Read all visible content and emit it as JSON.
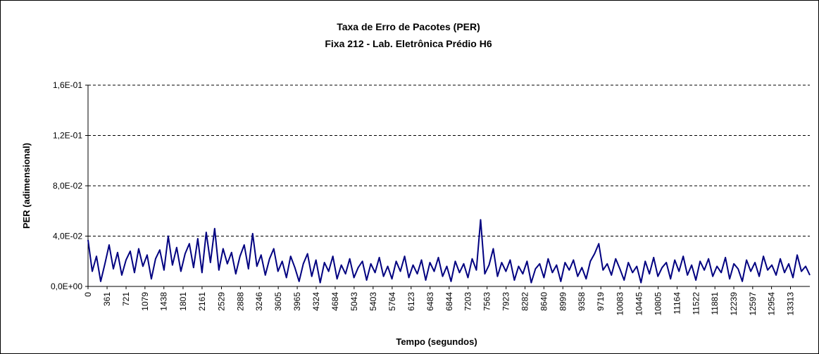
{
  "chart_data": {
    "type": "line",
    "title": "Taxa de Erro de Pacotes (PER)",
    "subtitle": "Fixa 212 - Lab. Eletrônica Prédio H6",
    "x_label": "Tempo (segundos)",
    "y_label": "PER (adimensional)",
    "x": [
      0,
      80,
      160,
      240,
      320,
      400,
      480,
      560,
      640,
      720,
      800,
      880,
      960,
      1040,
      1120,
      1200,
      1280,
      1360,
      1440,
      1520,
      1600,
      1680,
      1760,
      1840,
      1920,
      2000,
      2080,
      2160,
      2240,
      2320,
      2400,
      2480,
      2560,
      2640,
      2720,
      2800,
      2880,
      2960,
      3040,
      3120,
      3200,
      3280,
      3360,
      3440,
      3520,
      3600,
      3680,
      3760,
      3840,
      3920,
      4000,
      4080,
      4160,
      4240,
      4320,
      4400,
      4480,
      4560,
      4640,
      4720,
      4800,
      4880,
      4960,
      5040,
      5120,
      5200,
      5280,
      5360,
      5440,
      5520,
      5600,
      5680,
      5760,
      5840,
      5920,
      6000,
      6080,
      6160,
      6240,
      6320,
      6400,
      6480,
      6560,
      6640,
      6720,
      6800,
      6880,
      6960,
      7040,
      7120,
      7200,
      7280,
      7360,
      7440,
      7520,
      7600,
      7680,
      7760,
      7840,
      7920,
      8000,
      8080,
      8160,
      8240,
      8320,
      8400,
      8480,
      8560,
      8640,
      8720,
      8800,
      8880,
      8960,
      9040,
      9120,
      9200,
      9280,
      9360,
      9440,
      9520,
      9600,
      9680,
      9760,
      9840,
      9920,
      10000,
      10080,
      10160,
      10240,
      10320,
      10400,
      10480,
      10560,
      10640,
      10720,
      10800,
      10880,
      10960,
      11040,
      11120,
      11200,
      11280,
      11360,
      11440,
      11520,
      11600,
      11680,
      11760,
      11840,
      11920,
      12000,
      12080,
      12160,
      12240,
      12320,
      12400,
      12480,
      12560,
      12640,
      12720,
      12800,
      12880,
      12960,
      13040,
      13120,
      13200,
      13280,
      13360,
      13440,
      13520,
      13600,
      13680
    ],
    "series": [
      {
        "name": "PER",
        "color": "#000080",
        "values": [
          0.037,
          0.012,
          0.024,
          0.004,
          0.018,
          0.033,
          0.014,
          0.027,
          0.009,
          0.021,
          0.028,
          0.011,
          0.03,
          0.016,
          0.025,
          0.006,
          0.022,
          0.029,
          0.013,
          0.04,
          0.017,
          0.031,
          0.012,
          0.026,
          0.034,
          0.015,
          0.038,
          0.011,
          0.043,
          0.019,
          0.046,
          0.013,
          0.03,
          0.018,
          0.027,
          0.01,
          0.024,
          0.033,
          0.014,
          0.042,
          0.016,
          0.025,
          0.009,
          0.022,
          0.03,
          0.012,
          0.02,
          0.007,
          0.024,
          0.015,
          0.004,
          0.018,
          0.026,
          0.008,
          0.021,
          0.003,
          0.019,
          0.012,
          0.024,
          0.006,
          0.017,
          0.01,
          0.022,
          0.007,
          0.015,
          0.02,
          0.005,
          0.018,
          0.011,
          0.023,
          0.008,
          0.016,
          0.006,
          0.02,
          0.012,
          0.024,
          0.007,
          0.017,
          0.01,
          0.021,
          0.005,
          0.019,
          0.012,
          0.023,
          0.008,
          0.016,
          0.004,
          0.02,
          0.011,
          0.018,
          0.007,
          0.022,
          0.013,
          0.053,
          0.01,
          0.017,
          0.03,
          0.008,
          0.019,
          0.012,
          0.021,
          0.005,
          0.016,
          0.01,
          0.02,
          0.003,
          0.014,
          0.018,
          0.007,
          0.022,
          0.011,
          0.017,
          0.004,
          0.019,
          0.013,
          0.021,
          0.008,
          0.015,
          0.006,
          0.02,
          0.026,
          0.034,
          0.013,
          0.018,
          0.009,
          0.022,
          0.014,
          0.005,
          0.019,
          0.011,
          0.016,
          0.003,
          0.02,
          0.01,
          0.023,
          0.008,
          0.015,
          0.019,
          0.006,
          0.021,
          0.012,
          0.024,
          0.009,
          0.017,
          0.005,
          0.02,
          0.013,
          0.022,
          0.008,
          0.016,
          0.011,
          0.023,
          0.006,
          0.018,
          0.014,
          0.004,
          0.021,
          0.012,
          0.019,
          0.008,
          0.024,
          0.013,
          0.017,
          0.009,
          0.022,
          0.011,
          0.018,
          0.007,
          0.025,
          0.012,
          0.016,
          0.009
        ]
      }
    ],
    "xlim": [
      0,
      13680
    ],
    "xticks": [
      0,
      361,
      721,
      1079,
      1438,
      1801,
      2161,
      2529,
      2888,
      3246,
      3605,
      3965,
      4324,
      4684,
      5043,
      5403,
      5764,
      6123,
      6483,
      6844,
      7203,
      7563,
      7923,
      8282,
      8640,
      8999,
      9358,
      9719,
      10083,
      10445,
      10805,
      11164,
      11522,
      11881,
      12239,
      12597,
      12954,
      13313
    ],
    "ylim": [
      0,
      0.16
    ],
    "yticks": [
      {
        "value": 0,
        "label": "0,0E+00"
      },
      {
        "value": 0.04,
        "label": "4,0E-02"
      },
      {
        "value": 0.08,
        "label": "8,0E-02"
      },
      {
        "value": 0.12,
        "label": "1,2E-01"
      },
      {
        "value": 0.16,
        "label": "1,6E-01"
      }
    ],
    "grid": true
  }
}
